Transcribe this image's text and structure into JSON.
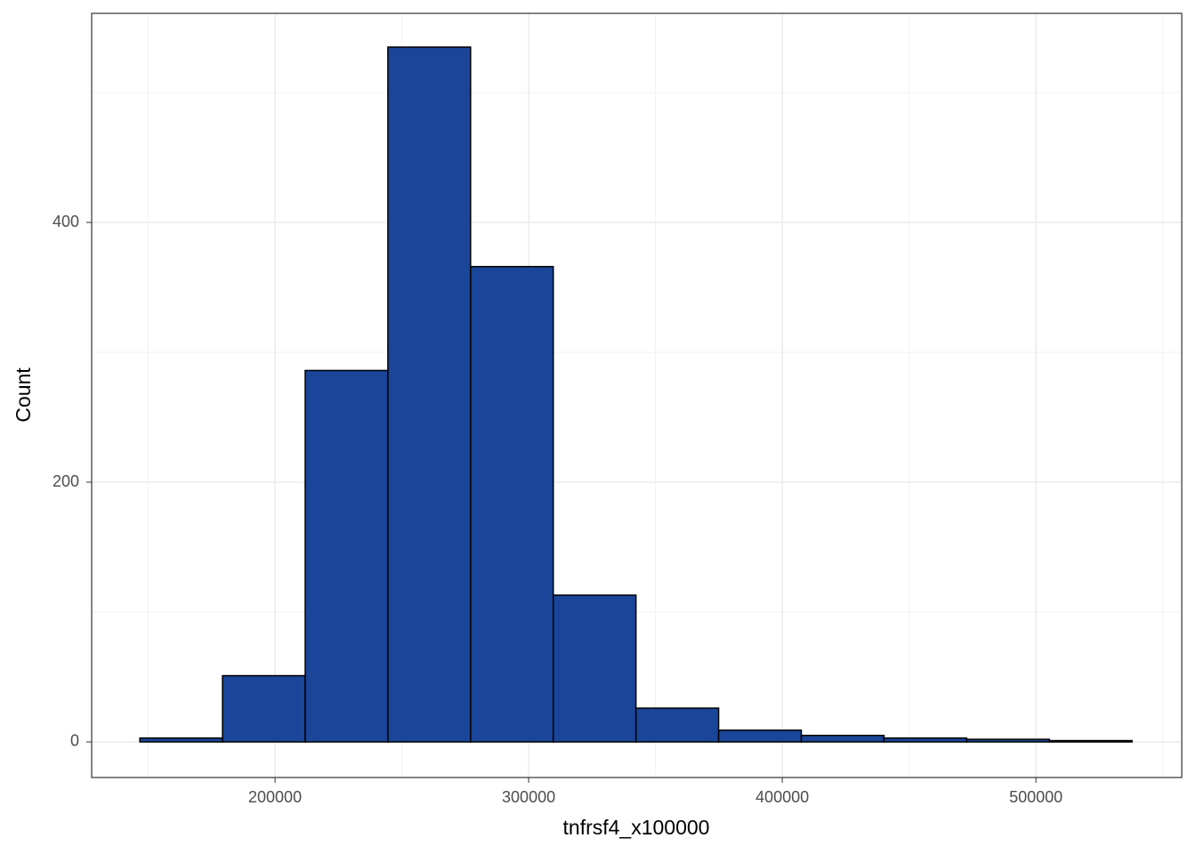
{
  "chart_data": {
    "type": "histogram",
    "x_label": "tnfrsf4_x100000",
    "y_label": "Count",
    "bins": [
      146700,
      179300,
      211900,
      244500,
      277100,
      309700,
      342300,
      374900,
      407500,
      440100,
      472700,
      505300,
      537900
    ],
    "counts": [
      3,
      51,
      286,
      535,
      366,
      113,
      26,
      9,
      5,
      3,
      2,
      1
    ],
    "color": "#1a4599",
    "edge_color": "#000000",
    "xlim": [
      127700,
      557500
    ],
    "ylim": [
      -27.4,
      561
    ],
    "xticks": [
      200000,
      300000,
      400000,
      500000
    ],
    "yticks": [
      0,
      200,
      400
    ],
    "x_minor_ticks": [
      150000,
      250000,
      350000,
      450000,
      550000
    ],
    "y_minor_ticks": [
      100,
      300,
      500
    ],
    "grid": true
  }
}
